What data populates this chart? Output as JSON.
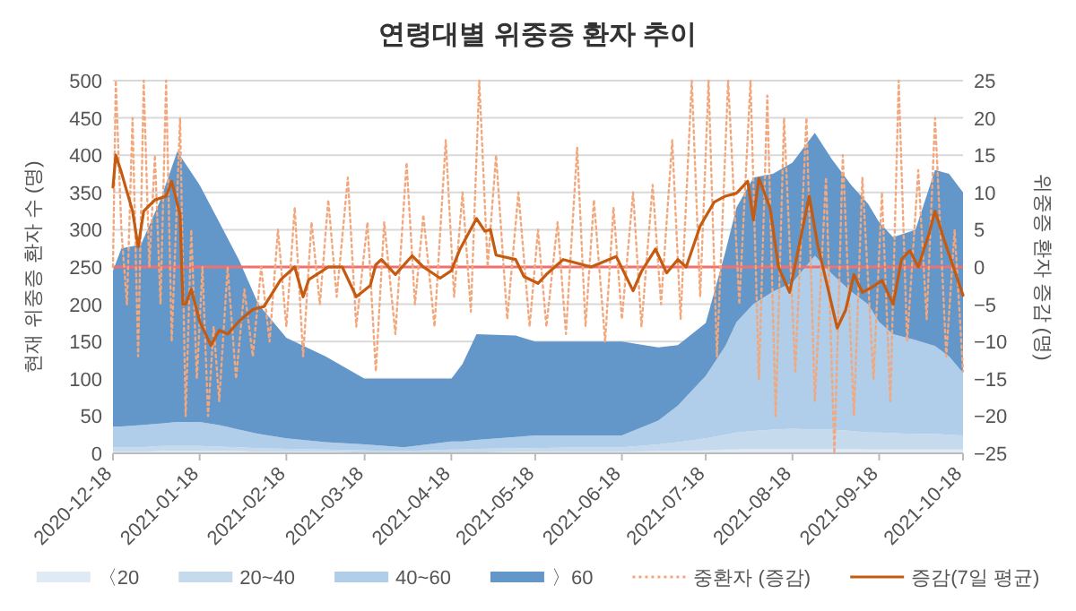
{
  "chart_data": {
    "type": "area",
    "stacked": true,
    "title": "연령대별 위중증 환자 추이",
    "ylabel": "현재 위중증 환자 수 (명)",
    "y2label": "위중증 환자 증감 (명)",
    "x": [
      "2020-12-18",
      "2020-12-21",
      "2020-12-28",
      "2021-01-04",
      "2021-01-10",
      "2021-01-18",
      "2021-01-25",
      "2021-02-01",
      "2021-02-08",
      "2021-02-18",
      "2021-03-04",
      "2021-03-18",
      "2021-04-01",
      "2021-04-18",
      "2021-04-22",
      "2021-04-27",
      "2021-05-11",
      "2021-05-18",
      "2021-06-01",
      "2021-06-18",
      "2021-07-01",
      "2021-07-08",
      "2021-07-18",
      "2021-07-25",
      "2021-07-29",
      "2021-08-04",
      "2021-08-11",
      "2021-08-18",
      "2021-08-26",
      "2021-09-01",
      "2021-09-08",
      "2021-09-14",
      "2021-09-18",
      "2021-09-23",
      "2021-10-01",
      "2021-10-08",
      "2021-10-13",
      "2021-10-18"
    ],
    "series": [
      {
        "name": "〈20",
        "color": "#dfeaf6",
        "values": [
          2,
          2,
          2,
          3,
          3,
          3,
          3,
          3,
          2,
          2,
          2,
          1,
          1,
          1,
          1,
          1,
          2,
          2,
          2,
          2,
          3,
          3,
          4,
          5,
          5,
          6,
          6,
          6,
          6,
          6,
          6,
          5,
          5,
          5,
          5,
          5,
          5,
          5
        ]
      },
      {
        "name": "20~40",
        "color": "#c6daee",
        "values": [
          6,
          6,
          6,
          7,
          7,
          7,
          6,
          5,
          5,
          4,
          3,
          3,
          2,
          4,
          4,
          5,
          5,
          5,
          6,
          6,
          9,
          12,
          16,
          20,
          23,
          24,
          26,
          27,
          26,
          26,
          24,
          23,
          23,
          22,
          21,
          21,
          20,
          19
        ]
      },
      {
        "name": "40~60",
        "color": "#b0cde9",
        "values": [
          28,
          28,
          30,
          30,
          32,
          32,
          29,
          24,
          19,
          14,
          10,
          8,
          5,
          11,
          11,
          12,
          15,
          17,
          16,
          16,
          32,
          49,
          84,
          119,
          148,
          170,
          185,
          196,
          233,
          209,
          187,
          172,
          148,
          133,
          126,
          118,
          105,
          84
        ]
      },
      {
        "name": "〉60",
        "color": "#6497c9",
        "values": [
          209,
          239,
          242,
          300,
          363,
          318,
          272,
          228,
          174,
          135,
          115,
          88,
          92,
          84,
          104,
          142,
          136,
          126,
          126,
          126,
          98,
          81,
          71,
          126,
          154,
          170,
          158,
          161,
          165,
          154,
          143,
          135,
          134,
          130,
          148,
          236,
          245,
          242
        ]
      },
      {
        "name": "중환자 (증감)",
        "type": "line",
        "axis": "y2",
        "line_style": "dotted",
        "color": "#f2a77c",
        "x": [
          "2020-12-18",
          "2020-12-19",
          "2020-12-21",
          "2020-12-23",
          "2020-12-25",
          "2020-12-27",
          "2020-12-29",
          "2020-12-31",
          "2021-01-02",
          "2021-01-04",
          "2021-01-06",
          "2021-01-08",
          "2021-01-11",
          "2021-01-13",
          "2021-01-15",
          "2021-01-17",
          "2021-01-19",
          "2021-01-21",
          "2021-01-23",
          "2021-01-25",
          "2021-01-28",
          "2021-01-31",
          "2021-02-03",
          "2021-02-06",
          "2021-02-09",
          "2021-02-12",
          "2021-02-15",
          "2021-02-18",
          "2021-02-21",
          "2021-02-24",
          "2021-02-27",
          "2021-03-02",
          "2021-03-05",
          "2021-03-08",
          "2021-03-12",
          "2021-03-15",
          "2021-03-19",
          "2021-03-22",
          "2021-03-25",
          "2021-03-29",
          "2021-04-02",
          "2021-04-05",
          "2021-04-08",
          "2021-04-12",
          "2021-04-16",
          "2021-04-19",
          "2021-04-22",
          "2021-04-25",
          "2021-04-28",
          "2021-05-01",
          "2021-05-04",
          "2021-05-08",
          "2021-05-12",
          "2021-05-16",
          "2021-05-19",
          "2021-05-22",
          "2021-05-26",
          "2021-05-29",
          "2021-06-02",
          "2021-06-05",
          "2021-06-08",
          "2021-06-12",
          "2021-06-15",
          "2021-06-18",
          "2021-06-22",
          "2021-06-25",
          "2021-06-29",
          "2021-07-02",
          "2021-07-06",
          "2021-07-09",
          "2021-07-13",
          "2021-07-16",
          "2021-07-19",
          "2021-07-22",
          "2021-07-26",
          "2021-07-30",
          "2021-08-03",
          "2021-08-06",
          "2021-08-09",
          "2021-08-12",
          "2021-08-15",
          "2021-08-19",
          "2021-08-23",
          "2021-08-26",
          "2021-08-30",
          "2021-09-02",
          "2021-09-05",
          "2021-09-09",
          "2021-09-12",
          "2021-09-16",
          "2021-09-19",
          "2021-09-22",
          "2021-09-25",
          "2021-09-28",
          "2021-10-02",
          "2021-10-05",
          "2021-10-08",
          "2021-10-12",
          "2021-10-15",
          "2021-10-18"
        ],
        "values": [
          0,
          25,
          5,
          -5,
          20,
          -12,
          25,
          0,
          15,
          -5,
          25,
          -10,
          20,
          -20,
          5,
          -15,
          0,
          -20,
          -8,
          -18,
          0,
          -15,
          -3,
          -12,
          0,
          -10,
          5,
          -8,
          8,
          -12,
          6,
          -5,
          9,
          -4,
          12,
          -8,
          6,
          -14,
          6,
          -9,
          14,
          -5,
          7,
          -8,
          17,
          -4,
          10,
          -6,
          25,
          0,
          15,
          -7,
          10,
          -8,
          5,
          -8,
          6,
          -9,
          16,
          -8,
          9,
          -10,
          8,
          -7,
          10,
          -8,
          11,
          -5,
          17,
          -7,
          25,
          -4,
          25,
          -12,
          25,
          -5,
          25,
          -15,
          23,
          -20,
          20,
          -14,
          20,
          -18,
          12,
          -25,
          15,
          -20,
          12,
          -15,
          10,
          -18,
          25,
          -10,
          13,
          -7,
          20,
          -12,
          5,
          -14
        ]
      },
      {
        "name": "증감(7일 평균)",
        "type": "line",
        "axis": "y2",
        "color": "#c55a11",
        "x": [
          "2020-12-18",
          "2020-12-19",
          "2020-12-21",
          "2020-12-25",
          "2020-12-27",
          "2020-12-29",
          "2021-01-02",
          "2021-01-06",
          "2021-01-08",
          "2021-01-11",
          "2021-01-12",
          "2021-01-13",
          "2021-01-15",
          "2021-01-18",
          "2021-01-22",
          "2021-01-25",
          "2021-01-28",
          "2021-02-01",
          "2021-02-06",
          "2021-02-10",
          "2021-02-16",
          "2021-02-21",
          "2021-02-24",
          "2021-02-26",
          "2021-03-05",
          "2021-03-10",
          "2021-03-15",
          "2021-03-20",
          "2021-03-22",
          "2021-03-24",
          "2021-03-29",
          "2021-04-04",
          "2021-04-08",
          "2021-04-14",
          "2021-04-18",
          "2021-04-21",
          "2021-04-27",
          "2021-04-30",
          "2021-05-02",
          "2021-05-04",
          "2021-05-11",
          "2021-05-14",
          "2021-05-19",
          "2021-05-22",
          "2021-05-28",
          "2021-06-01",
          "2021-06-07",
          "2021-06-16",
          "2021-06-22",
          "2021-06-25",
          "2021-06-30",
          "2021-07-04",
          "2021-07-08",
          "2021-07-11",
          "2021-07-16",
          "2021-07-21",
          "2021-07-25",
          "2021-07-29",
          "2021-08-02",
          "2021-08-04",
          "2021-08-06",
          "2021-08-10",
          "2021-08-13",
          "2021-08-17",
          "2021-08-20",
          "2021-08-24",
          "2021-08-27",
          "2021-08-30",
          "2021-09-03",
          "2021-09-06",
          "2021-09-09",
          "2021-09-12",
          "2021-09-16",
          "2021-09-19",
          "2021-09-23",
          "2021-09-26",
          "2021-09-29",
          "2021-10-02",
          "2021-10-06",
          "2021-10-08",
          "2021-10-11",
          "2021-10-14",
          "2021-10-18"
        ],
        "values": [
          10.7,
          15,
          12.7,
          7.5,
          2.7,
          7.5,
          9,
          9.5,
          11.5,
          7,
          -5,
          -5,
          -3,
          -7.3,
          -10.5,
          -8.5,
          -9,
          -7.3,
          -5.7,
          -5.3,
          -1.7,
          0,
          -4,
          -1.7,
          0,
          0,
          -4,
          -2.5,
          0.3,
          1,
          -1,
          1.5,
          0,
          -1.5,
          -0.5,
          2.3,
          6.5,
          4.8,
          5,
          1.6,
          1,
          -1.3,
          -2.2,
          -1,
          1,
          0.6,
          0,
          1.4,
          -3.2,
          -0.6,
          2.4,
          -0.8,
          1,
          0,
          5.5,
          8.7,
          9.5,
          9.9,
          11.5,
          6.3,
          11.9,
          7.9,
          0,
          -3.4,
          2.2,
          9.5,
          3,
          -1.8,
          -8.2,
          -5.8,
          -1,
          -3.4,
          -2.6,
          -1.8,
          -5,
          1,
          2.2,
          0,
          4.7,
          7.5,
          3.9,
          0.6,
          -3.8
        ]
      }
    ],
    "xlim": [
      "2020-12-18",
      "2021-10-18"
    ],
    "xticks": [
      "2020-12-18",
      "2021-01-18",
      "2021-02-18",
      "2021-03-18",
      "2021-04-18",
      "2021-05-18",
      "2021-06-18",
      "2021-07-18",
      "2021-08-18",
      "2021-09-18",
      "2021-10-18"
    ],
    "ylim": [
      0,
      500
    ],
    "yticks": [
      0,
      50,
      100,
      150,
      200,
      250,
      300,
      350,
      400,
      450,
      500
    ],
    "y2lim": [
      -25,
      25
    ],
    "y2ticks": [
      -25,
      -20,
      -15,
      -10,
      -5,
      0,
      5,
      10,
      15,
      20,
      25
    ],
    "ref_lines": [
      {
        "axis": "y2",
        "value": 0,
        "color": "#f07070"
      }
    ],
    "grid": "y",
    "legend": "bottom"
  }
}
